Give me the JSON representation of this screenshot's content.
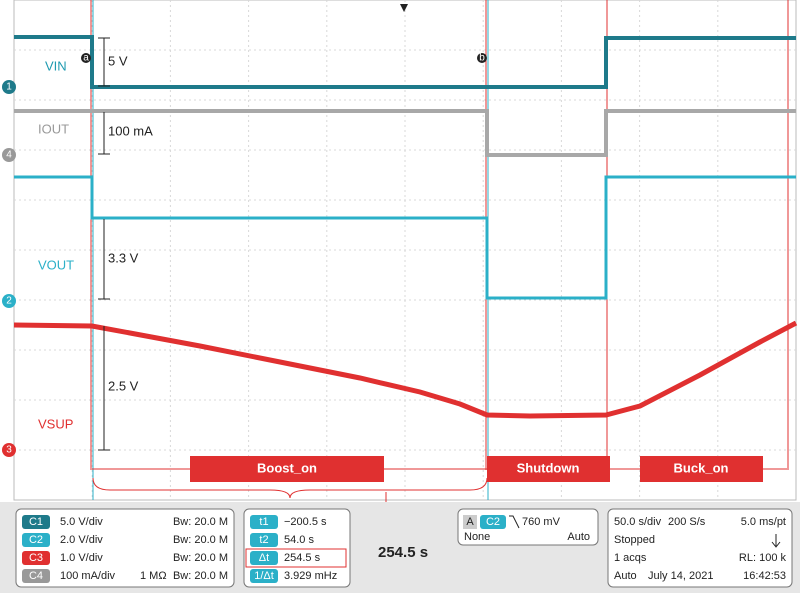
{
  "screen": {
    "markers": [
      "a",
      "b"
    ],
    "traces": [
      {
        "name": "VIN",
        "channel": "1"
      },
      {
        "name": "IOUT",
        "channel": "4"
      },
      {
        "name": "VOUT",
        "channel": "2"
      },
      {
        "name": "VSUP",
        "channel": "3"
      }
    ],
    "annotations": [
      "5 V",
      "100 mA",
      "3.3 V",
      "2.5 V"
    ],
    "phases": [
      "Boost_on",
      "Shutdown",
      "Buck_on"
    ],
    "delta_callout": "254.5 s",
    "channels": [
      {
        "id": "C1",
        "scale": "5.0 V/div",
        "impedance": "",
        "bandwidth": "Bw: 20.0 M"
      },
      {
        "id": "C2",
        "scale": "2.0 V/div",
        "impedance": "",
        "bandwidth": "Bw: 20.0 M"
      },
      {
        "id": "C3",
        "scale": "1.0 V/div",
        "impedance": "",
        "bandwidth": "Bw: 20.0 M"
      },
      {
        "id": "C4",
        "scale": "100 mA/div",
        "impedance": "1 MΩ",
        "bandwidth": "Bw: 20.0 M"
      }
    ],
    "cursors": [
      {
        "id": "t1",
        "value": "−200.5 s"
      },
      {
        "id": "t2",
        "value": "54.0 s"
      },
      {
        "id": "Δt",
        "value": "254.5 s"
      },
      {
        "id": "1/Δt",
        "value": "3.929 mHz"
      }
    ],
    "trigger": {
      "mode": "A",
      "source": "C2",
      "level": "760 mV",
      "coupling": "None",
      "sweep": "Auto"
    },
    "acquisition": {
      "timebase": "50.0 s/div",
      "rate": "200 S/s",
      "resolution": "5.0 ms/pt",
      "state": "Stopped",
      "acqs": "1 acqs",
      "record": "RL: 100 k",
      "mode": "Auto",
      "date": "July 14, 2021",
      "time": "16:42:53"
    }
  }
}
